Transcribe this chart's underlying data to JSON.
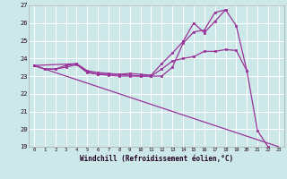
{
  "xlabel": "Windchill (Refroidissement éolien,°C)",
  "bg_color": "#cce8e8",
  "line_color": "#993399",
  "grid_color": "#ffffff",
  "xlim": [
    -0.5,
    23.5
  ],
  "ylim": [
    19,
    27
  ],
  "xticks": [
    0,
    1,
    2,
    3,
    4,
    5,
    6,
    7,
    8,
    9,
    10,
    11,
    12,
    13,
    14,
    15,
    16,
    17,
    18,
    19,
    20,
    21,
    22,
    23
  ],
  "yticks": [
    19,
    20,
    21,
    22,
    23,
    24,
    25,
    26,
    27
  ],
  "line1": {
    "x": [
      0,
      1,
      2,
      3,
      4,
      5,
      6,
      7,
      8,
      9,
      10,
      11,
      12,
      13,
      14,
      15,
      16,
      17,
      18,
      19,
      20,
      21,
      22
    ],
    "y": [
      23.6,
      23.4,
      23.4,
      23.5,
      23.65,
      23.2,
      23.1,
      23.05,
      23.0,
      23.0,
      23.0,
      23.0,
      23.4,
      23.85,
      24.0,
      24.1,
      24.4,
      24.4,
      24.5,
      24.45,
      23.3,
      19.9,
      19.0
    ]
  },
  "line2": {
    "x": [
      0,
      1,
      2,
      3,
      4,
      5,
      6,
      7,
      8,
      9,
      10,
      11,
      12,
      13,
      14,
      15,
      16,
      17,
      18,
      19,
      20
    ],
    "y": [
      23.6,
      23.4,
      23.4,
      23.6,
      23.7,
      23.25,
      23.1,
      23.1,
      23.1,
      23.15,
      23.1,
      23.05,
      23.7,
      24.3,
      24.95,
      26.0,
      25.45,
      26.1,
      26.75,
      25.85,
      23.3
    ]
  },
  "line3": {
    "x": [
      0,
      4,
      5,
      6,
      7,
      8,
      9,
      10,
      11,
      12,
      13,
      14,
      15,
      16,
      17,
      18
    ],
    "y": [
      23.6,
      23.7,
      23.3,
      23.2,
      23.15,
      23.1,
      23.05,
      23.0,
      23.0,
      23.0,
      23.5,
      24.85,
      25.5,
      25.6,
      26.6,
      26.75
    ]
  },
  "line4": {
    "comment": "straight diagonal from (0, 23.6) to (23, 19.0)",
    "x": [
      0,
      23
    ],
    "y": [
      23.6,
      19.0
    ]
  }
}
